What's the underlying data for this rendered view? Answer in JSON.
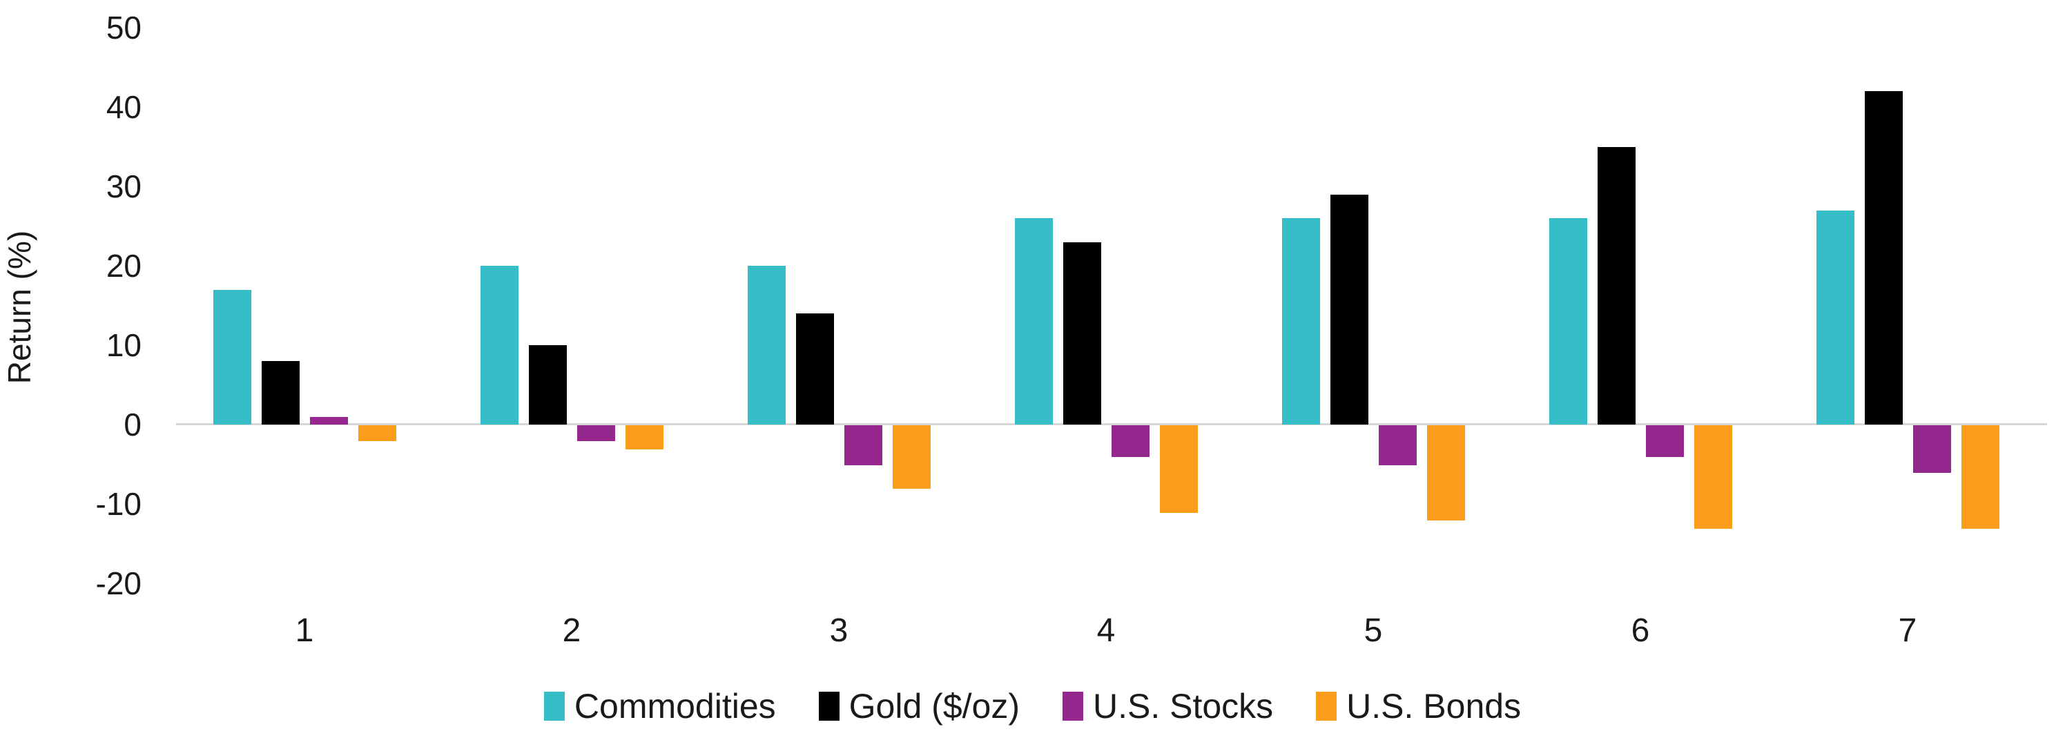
{
  "chart_data": {
    "type": "bar",
    "ylabel": "Return (%)",
    "xlabel": "",
    "categories": [
      "1",
      "2",
      "3",
      "4",
      "5",
      "6",
      "7"
    ],
    "series": [
      {
        "name": "Commodities",
        "color": "#35bdc8",
        "values": [
          17,
          20,
          20,
          26,
          26,
          26,
          27
        ]
      },
      {
        "name": "Gold ($/oz)",
        "color": "#000000",
        "values": [
          8,
          10,
          14,
          23,
          29,
          35,
          42
        ]
      },
      {
        "name": "U.S. Stocks",
        "color": "#95278f",
        "values": [
          1,
          -2,
          -5,
          -4,
          -5,
          -4,
          -6
        ]
      },
      {
        "name": "U.S. Bonds",
        "color": "#f99d1b",
        "values": [
          -2,
          -3,
          -8,
          -11,
          -12,
          -13,
          -13
        ]
      }
    ],
    "ylim": [
      -20,
      50
    ],
    "yticks": [
      50,
      40,
      30,
      20,
      10,
      0,
      -10,
      -20
    ],
    "grid": false,
    "legend_position": "bottom",
    "axis_line_color": "#d7d7d7",
    "text_color": "#1a1a1a",
    "background_color": "#ffffff"
  }
}
